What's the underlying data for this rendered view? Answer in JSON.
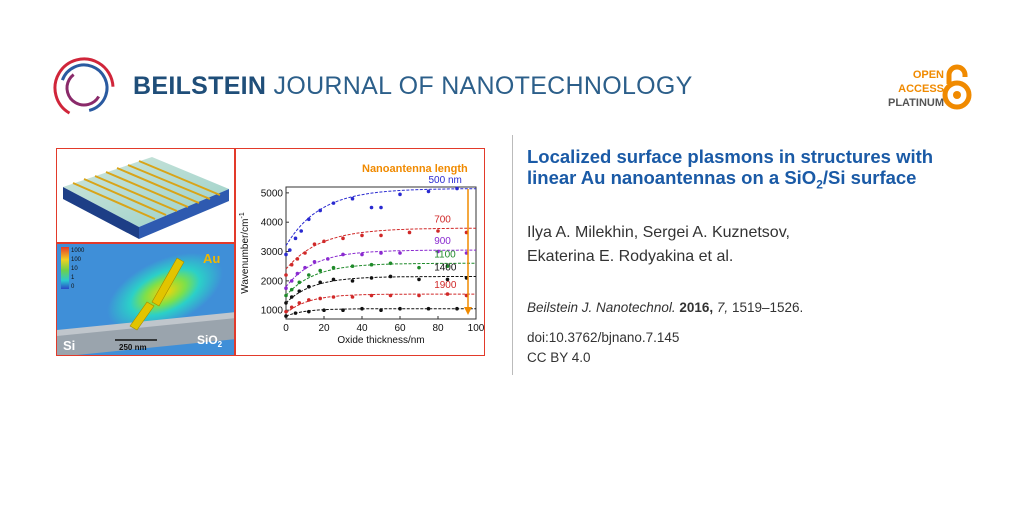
{
  "header": {
    "journal_bold": "BEILSTEIN",
    "journal_rest": "JOURNAL OF NANOTECHNOLOGY",
    "oa_line1": "OPEN",
    "oa_line2": "ACCESS",
    "oa_line3": "PLATINUM",
    "colors": {
      "brand_blue": "#1f4e79",
      "oa_orange": "#f08a00",
      "ring_red": "#d0253a",
      "ring_blue": "#2a5aa0"
    }
  },
  "article": {
    "title_part1": "Localized surface plasmons in structures with linear Au nanoantennas on a SiO",
    "title_sub": "2",
    "title_part2": "/Si surface",
    "authors_line1": "Ilya A. Milekhin, Sergei A. Kuznetsov,",
    "authors_line2": "Ekaterina E. Rodyakina et al.",
    "journal_abbrev": "Beilstein J. Nanotechnol.",
    "year": "2016,",
    "volume": "7,",
    "pages": "1519–1526.",
    "doi": "doi:10.3762/bjnano.7.145",
    "license": "CC BY 4.0"
  },
  "figure": {
    "field_colorbar_ticks": [
      "1000",
      "100",
      "10",
      "1",
      "0"
    ],
    "label_au": "Au",
    "label_si": "Si",
    "label_sio2_base": "SiO",
    "label_sio2_sub": "2",
    "scalebar": "250 nm",
    "accent_color": "#e23a2a"
  },
  "chart_data": {
    "type": "scatter",
    "title": "Nanoantenna length",
    "xlabel": "Oxide thickness/nm",
    "ylabel": "Wavenumber/cm",
    "ylabel_sup": "-1",
    "xlim": [
      0,
      100
    ],
    "ylim": [
      700,
      5200
    ],
    "xticks": [
      0,
      20,
      40,
      60,
      80,
      100
    ],
    "yticks": [
      1000,
      2000,
      3000,
      4000,
      5000
    ],
    "grid": false,
    "series": [
      {
        "name": "500 nm",
        "color": "#2a2ad0",
        "a": 5150,
        "b": 1950,
        "k": 18,
        "points": [
          [
            0,
            2900
          ],
          [
            2,
            3050
          ],
          [
            5,
            3450
          ],
          [
            8,
            3700
          ],
          [
            12,
            4100
          ],
          [
            18,
            4400
          ],
          [
            25,
            4650
          ],
          [
            35,
            4800
          ],
          [
            45,
            4500
          ],
          [
            50,
            4500
          ],
          [
            60,
            4950
          ],
          [
            75,
            5050
          ],
          [
            90,
            5150
          ]
        ]
      },
      {
        "name": "700",
        "color": "#d02828",
        "a": 3800,
        "b": 1400,
        "k": 18,
        "points": [
          [
            0,
            2200
          ],
          [
            3,
            2550
          ],
          [
            6,
            2750
          ],
          [
            10,
            2950
          ],
          [
            15,
            3250
          ],
          [
            20,
            3350
          ],
          [
            30,
            3450
          ],
          [
            40,
            3550
          ],
          [
            50,
            3550
          ],
          [
            65,
            3650
          ],
          [
            80,
            3700
          ],
          [
            95,
            3650
          ]
        ]
      },
      {
        "name": "900",
        "color": "#8a2ad0",
        "a": 3050,
        "b": 1250,
        "k": 15,
        "points": [
          [
            0,
            1750
          ],
          [
            3,
            2000
          ],
          [
            6,
            2250
          ],
          [
            10,
            2450
          ],
          [
            15,
            2650
          ],
          [
            22,
            2750
          ],
          [
            30,
            2900
          ],
          [
            40,
            2900
          ],
          [
            50,
            2950
          ],
          [
            60,
            2950
          ],
          [
            80,
            3000
          ],
          [
            95,
            2950
          ]
        ]
      },
      {
        "name": "1100",
        "color": "#1f8a2a",
        "a": 2600,
        "b": 1100,
        "k": 15,
        "points": [
          [
            0,
            1500
          ],
          [
            3,
            1700
          ],
          [
            7,
            1950
          ],
          [
            12,
            2200
          ],
          [
            18,
            2350
          ],
          [
            25,
            2450
          ],
          [
            35,
            2500
          ],
          [
            45,
            2550
          ],
          [
            55,
            2600
          ],
          [
            70,
            2450
          ],
          [
            85,
            2500
          ]
        ]
      },
      {
        "name": "1400",
        "color": "#111111",
        "a": 2150,
        "b": 900,
        "k": 14,
        "points": [
          [
            0,
            1250
          ],
          [
            3,
            1450
          ],
          [
            7,
            1650
          ],
          [
            12,
            1800
          ],
          [
            18,
            1950
          ],
          [
            25,
            2050
          ],
          [
            35,
            2000
          ],
          [
            45,
            2100
          ],
          [
            55,
            2150
          ],
          [
            70,
            2050
          ],
          [
            85,
            2050
          ],
          [
            95,
            2100
          ]
        ]
      },
      {
        "name": "1900",
        "color": "#d02828",
        "a": 1550,
        "b": 650,
        "k": 12,
        "points": [
          [
            0,
            950
          ],
          [
            3,
            1100
          ],
          [
            7,
            1250
          ],
          [
            12,
            1350
          ],
          [
            18,
            1400
          ],
          [
            25,
            1450
          ],
          [
            35,
            1450
          ],
          [
            45,
            1500
          ],
          [
            55,
            1500
          ],
          [
            70,
            1500
          ],
          [
            85,
            1550
          ],
          [
            95,
            1500
          ]
        ]
      },
      {
        "name": "",
        "color": "#111111",
        "a": 1050,
        "b": 250,
        "k": 10,
        "points": [
          [
            0,
            800
          ],
          [
            5,
            900
          ],
          [
            12,
            950
          ],
          [
            20,
            1000
          ],
          [
            30,
            1000
          ],
          [
            40,
            1050
          ],
          [
            50,
            1000
          ],
          [
            60,
            1050
          ],
          [
            75,
            1050
          ],
          [
            90,
            1050
          ]
        ]
      }
    ]
  }
}
